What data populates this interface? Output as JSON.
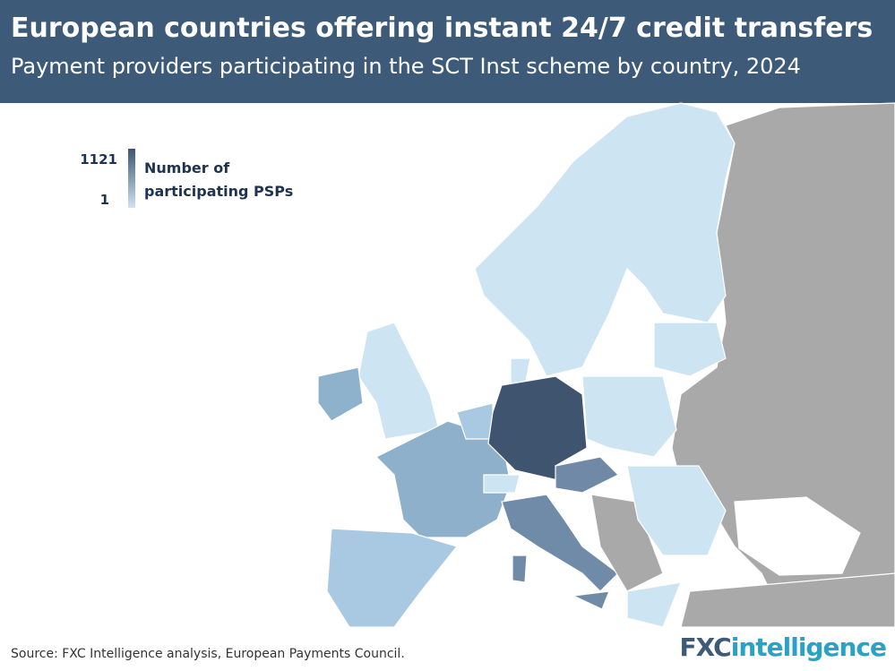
{
  "header": {
    "title": "European countries offering instant 24/7 credit transfers",
    "subtitle": "Payment providers participating in the SCT Inst scheme by country, 2024"
  },
  "legend": {
    "max": 1121,
    "min": 1,
    "colors": [
      "#3e5570",
      "#cde4f2"
    ],
    "label": [
      "Number of",
      "participating PSPs"
    ]
  },
  "footer": {
    "source": "Source: FXC Intelligence analysis, European Payments Council.",
    "logo": [
      "FXC",
      "intelligence"
    ]
  }
}
